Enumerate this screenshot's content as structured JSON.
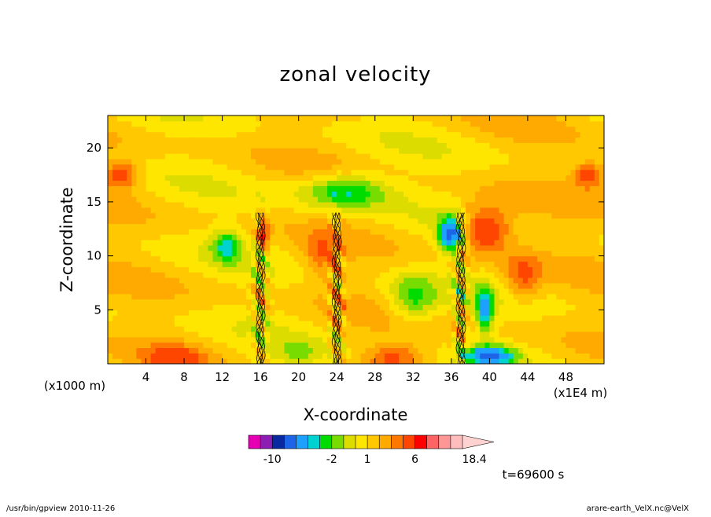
{
  "chart_data": {
    "type": "heatmap",
    "title": "zonal velocity",
    "xlabel": "X-coordinate",
    "ylabel": "Z-coordinate",
    "x_unit_label": "(x1000 m)",
    "x_scale_label": "(x1E4 m)",
    "xlim": [
      0,
      52
    ],
    "ylim": [
      0,
      23
    ],
    "x_ticks": [
      "4",
      "8",
      "12",
      "16",
      "20",
      "24",
      "28",
      "32",
      "36",
      "40",
      "44",
      "48"
    ],
    "x_tick_values": [
      4,
      8,
      12,
      16,
      20,
      24,
      28,
      32,
      36,
      40,
      44,
      48
    ],
    "y_ticks": [
      "5",
      "10",
      "15",
      "20"
    ],
    "y_tick_values": [
      5,
      10,
      15,
      20
    ],
    "colorbar": {
      "levels": [
        -14,
        -12,
        -10,
        -8,
        -6,
        -4,
        -3,
        -2,
        -1,
        0,
        1,
        2,
        3,
        4,
        6,
        8,
        10,
        12,
        14,
        18.4
      ],
      "colors": [
        "#e600b4",
        "#8c1eb4",
        "#0a28a0",
        "#1e64e6",
        "#1ea0ff",
        "#00d2d2",
        "#00dc00",
        "#78dc00",
        "#dcdc00",
        "#ffe600",
        "#ffc800",
        "#ffaa00",
        "#ff7800",
        "#ff4600",
        "#ff0000",
        "#ff6464",
        "#ff9696",
        "#ffbebe",
        "#ffd2d2"
      ],
      "tick_labels": [
        "-10",
        "-2",
        "1",
        "6",
        "18.4"
      ],
      "tick_values": [
        -10,
        -2,
        1,
        6,
        18.4
      ]
    },
    "grid": false,
    "legend_position": "bottom-center"
  },
  "annotations": {
    "time": "t=69600 s",
    "footer_left": "/usr/bin/gpview   2010-11-26",
    "footer_right": "arare-earth_VelX.nc@VelX"
  }
}
